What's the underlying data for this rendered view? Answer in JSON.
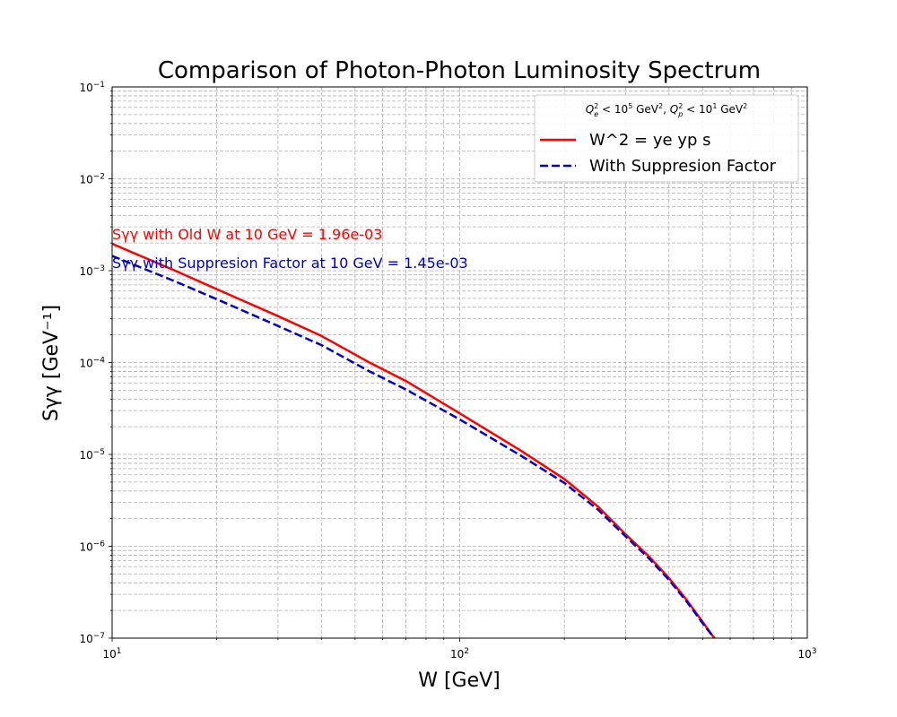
{
  "chart_data": {
    "type": "line",
    "title": "Comparison of Photon-Photon Luminosity Spectrum",
    "xlabel": "W [GeV]",
    "ylabel": "Sγγ [GeV⁻¹]",
    "xscale": "log",
    "yscale": "log",
    "xlim": [
      10,
      1000
    ],
    "ylim": [
      1e-07,
      0.1
    ],
    "grid": true,
    "x_ticks": [
      {
        "value": 10,
        "base": "10",
        "exp": "1"
      },
      {
        "value": 100,
        "base": "10",
        "exp": "2"
      },
      {
        "value": 1000,
        "base": "10",
        "exp": "3"
      }
    ],
    "y_ticks": [
      {
        "value": 1e-07,
        "base": "10",
        "exp": "−7"
      },
      {
        "value": 1e-06,
        "base": "10",
        "exp": "−6"
      },
      {
        "value": 1e-05,
        "base": "10",
        "exp": "−5"
      },
      {
        "value": 0.0001,
        "base": "10",
        "exp": "−4"
      },
      {
        "value": 0.001,
        "base": "10",
        "exp": "−3"
      },
      {
        "value": 0.01,
        "base": "10",
        "exp": "−2"
      },
      {
        "value": 0.1,
        "base": "10",
        "exp": "−1"
      }
    ],
    "legend": {
      "position": "top-right",
      "title": "Q_e^2 < 10^5 GeV^2, Q_p^2 < 10^1 GeV^2",
      "title_parts": {
        "q": "Q",
        "e_sub": "e",
        "p_sub": "p",
        "sq": "2",
        "e_lt": " < 10",
        "e_pow": "5",
        "unit": " GeV",
        "sep": ", ",
        "p_pow": "1"
      }
    },
    "series": [
      {
        "name": "W^2 = ye yp s",
        "color": "#ff0000",
        "style": "solid",
        "x": [
          10,
          15,
          20,
          30,
          40,
          55,
          70,
          100,
          150,
          200,
          250,
          300,
          350,
          400,
          450,
          500,
          540
        ],
        "y": [
          0.00196,
          0.00102,
          0.00063,
          0.00032,
          0.000195,
          0.0001,
          6.3e-05,
          2.8e-05,
          1.1e-05,
          5.4e-06,
          2.7e-06,
          1.35e-06,
          7.8e-07,
          4.5e-07,
          2.6e-07,
          1.5e-07,
          1e-07
        ]
      },
      {
        "name": "With Suppresion Factor",
        "color": "#0000cc",
        "style": "dashed",
        "x": [
          10,
          15,
          20,
          30,
          40,
          55,
          70,
          100,
          150,
          200,
          250,
          300,
          350,
          400,
          450,
          500,
          540
        ],
        "y": [
          0.00145,
          0.00078,
          0.00049,
          0.00025,
          0.000155,
          8e-05,
          5.1e-05,
          2.4e-05,
          9.7e-06,
          4.9e-06,
          2.5e-06,
          1.28e-06,
          7.4e-07,
          4.3e-07,
          2.5e-07,
          1.45e-07,
          1e-07
        ]
      }
    ],
    "annotations": [
      {
        "text": "Sγγ with Old W at 10 GeV =  1.96e-03",
        "color": "#ff0000"
      },
      {
        "text": "Sγγ with Suppresion Factor at 10 GeV =  1.45e-03",
        "color": "#0000cc"
      }
    ]
  }
}
